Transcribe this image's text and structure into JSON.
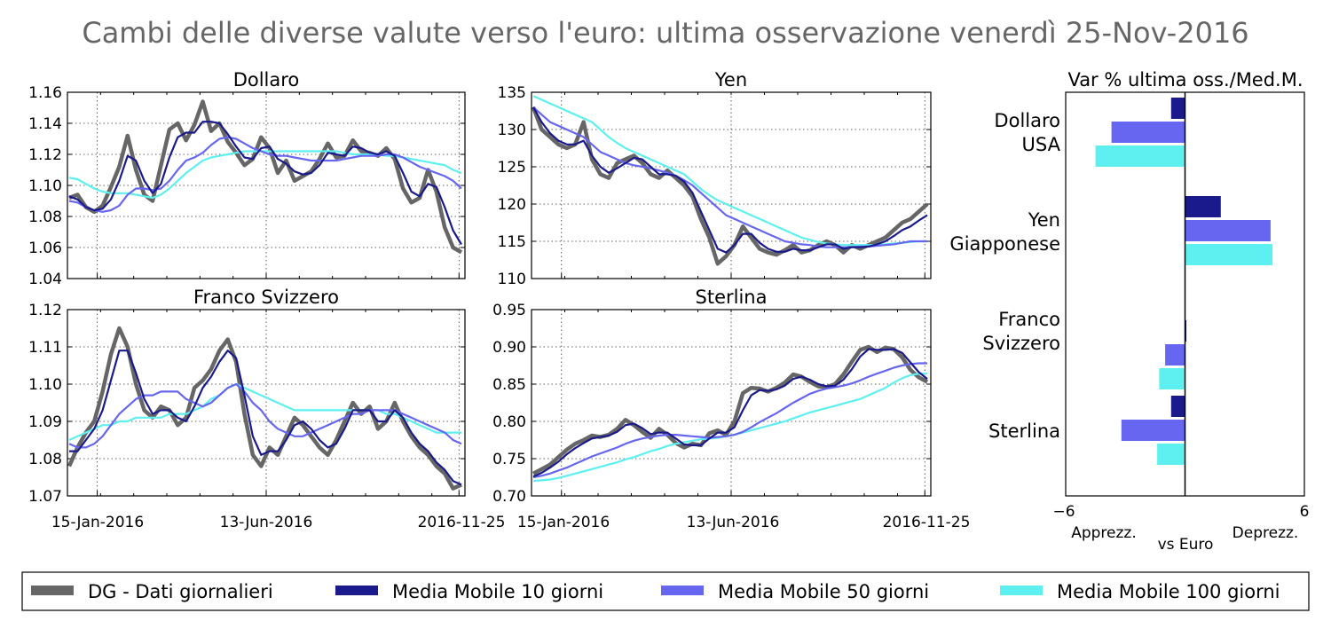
{
  "title": "Cambi delle diverse valute verso l'euro: ultima osservazione venerdì 25-Nov-2016",
  "colors": {
    "daily": "#666666",
    "ma10": "#1a1a8c",
    "ma50": "#6666f0",
    "ma100": "#5ef0f0",
    "apprezz": "#0e9a0e",
    "deprezz": "#a01010"
  },
  "legend": [
    {
      "key": "daily",
      "label": "DG - Dati giornalieri"
    },
    {
      "key": "ma10",
      "label": "Media Mobile 10 giorni"
    },
    {
      "key": "ma50",
      "label": "Media Mobile 50 giorni"
    },
    {
      "key": "ma100",
      "label": "Media Mobile 100 giorni"
    }
  ],
  "chart_data": [
    {
      "type": "line",
      "title": "Dollaro",
      "x_ticks": [
        "15-Jan-2016",
        "13-Jun-2016",
        "2016-11-25"
      ],
      "ylim": [
        1.04,
        1.16
      ],
      "yticks": [
        "1.04",
        "1.06",
        "1.08",
        "1.10",
        "1.12",
        "1.14",
        "1.16"
      ],
      "series": [
        {
          "name": "DG - Dati giornalieri",
          "key": "daily",
          "values": [
            1.092,
            1.094,
            1.086,
            1.083,
            1.087,
            1.099,
            1.112,
            1.132,
            1.11,
            1.094,
            1.09,
            1.113,
            1.136,
            1.14,
            1.129,
            1.139,
            1.154,
            1.135,
            1.14,
            1.128,
            1.121,
            1.113,
            1.117,
            1.131,
            1.124,
            1.108,
            1.116,
            1.103,
            1.106,
            1.109,
            1.117,
            1.127,
            1.118,
            1.119,
            1.129,
            1.122,
            1.121,
            1.119,
            1.124,
            1.117,
            1.098,
            1.089,
            1.092,
            1.11,
            1.096,
            1.073,
            1.06,
            1.057
          ]
        },
        {
          "name": "Media Mobile 10 giorni",
          "key": "ma10",
          "values": [
            1.093,
            1.091,
            1.086,
            1.084,
            1.085,
            1.091,
            1.103,
            1.119,
            1.116,
            1.103,
            1.095,
            1.101,
            1.118,
            1.131,
            1.134,
            1.134,
            1.141,
            1.141,
            1.14,
            1.133,
            1.125,
            1.118,
            1.117,
            1.124,
            1.125,
            1.117,
            1.114,
            1.109,
            1.107,
            1.108,
            1.113,
            1.121,
            1.12,
            1.119,
            1.125,
            1.124,
            1.121,
            1.12,
            1.122,
            1.119,
            1.108,
            1.096,
            1.093,
            1.101,
            1.099,
            1.086,
            1.071,
            1.062
          ]
        },
        {
          "name": "Media Mobile 50 giorni",
          "key": "ma50",
          "values": [
            1.09,
            1.089,
            1.086,
            1.084,
            1.083,
            1.084,
            1.087,
            1.094,
            1.098,
            1.098,
            1.097,
            1.098,
            1.103,
            1.11,
            1.116,
            1.118,
            1.121,
            1.126,
            1.13,
            1.131,
            1.13,
            1.127,
            1.124,
            1.122,
            1.12,
            1.119,
            1.119,
            1.118,
            1.117,
            1.116,
            1.116,
            1.116,
            1.116,
            1.117,
            1.118,
            1.119,
            1.119,
            1.119,
            1.12,
            1.12,
            1.118,
            1.115,
            1.112,
            1.11,
            1.108,
            1.106,
            1.103,
            1.098
          ]
        },
        {
          "name": "Media Mobile 100 giorni",
          "key": "ma100",
          "values": [
            1.105,
            1.104,
            1.101,
            1.098,
            1.096,
            1.095,
            1.095,
            1.095,
            1.094,
            1.093,
            1.092,
            1.094,
            1.098,
            1.103,
            1.108,
            1.112,
            1.116,
            1.118,
            1.119,
            1.12,
            1.121,
            1.122,
            1.122,
            1.122,
            1.122,
            1.122,
            1.122,
            1.122,
            1.122,
            1.122,
            1.122,
            1.122,
            1.122,
            1.121,
            1.12,
            1.12,
            1.12,
            1.12,
            1.119,
            1.119,
            1.118,
            1.117,
            1.116,
            1.115,
            1.114,
            1.113,
            1.11,
            1.108
          ]
        }
      ]
    },
    {
      "type": "line",
      "title": "Yen",
      "x_ticks": [
        "15-Jan-2016",
        "13-Jun-2016",
        "2016-11-25"
      ],
      "ylim": [
        110,
        135
      ],
      "yticks": [
        "110",
        "115",
        "120",
        "125",
        "130",
        "135"
      ],
      "series": [
        {
          "name": "DG - Dati giornalieri",
          "key": "daily",
          "values": [
            133.0,
            130.0,
            129.0,
            128.0,
            127.5,
            128.0,
            131.0,
            126.0,
            124.0,
            123.5,
            125.5,
            126.0,
            126.5,
            125.5,
            124.0,
            123.5,
            124.5,
            123.5,
            122.5,
            121.0,
            118.0,
            115.5,
            112.0,
            113.0,
            114.5,
            117.0,
            115.5,
            114.0,
            113.5,
            113.2,
            113.8,
            114.5,
            113.5,
            113.8,
            114.5,
            115.0,
            114.5,
            113.5,
            114.5,
            114.0,
            114.5,
            115.0,
            115.5,
            116.5,
            117.5,
            118.0,
            119.0,
            120.0
          ]
        },
        {
          "name": "Media Mobile 10 giorni",
          "key": "ma10",
          "values": [
            133.0,
            131.0,
            129.5,
            128.5,
            128.0,
            128.0,
            128.5,
            126.5,
            125.0,
            124.2,
            124.8,
            125.5,
            126.2,
            126.0,
            125.0,
            124.0,
            124.0,
            123.8,
            123.0,
            121.5,
            119.0,
            116.5,
            114.0,
            113.5,
            114.5,
            116.0,
            116.0,
            114.8,
            114.0,
            113.6,
            113.6,
            114.0,
            113.8,
            113.8,
            114.2,
            114.6,
            114.6,
            114.0,
            114.2,
            114.2,
            114.3,
            114.6,
            115.0,
            115.7,
            116.5,
            117.0,
            117.8,
            118.5
          ]
        },
        {
          "name": "Media Mobile 50 giorni",
          "key": "ma50",
          "values": [
            133.0,
            132.0,
            131.0,
            130.5,
            130.0,
            129.5,
            129.0,
            128.0,
            127.0,
            126.5,
            126.0,
            125.5,
            125.2,
            125.0,
            124.8,
            124.5,
            124.2,
            123.8,
            123.2,
            122.5,
            121.5,
            120.5,
            119.5,
            118.5,
            118.0,
            117.5,
            117.0,
            116.5,
            116.0,
            115.5,
            115.0,
            114.8,
            114.6,
            114.5,
            114.3,
            114.2,
            114.2,
            114.2,
            114.2,
            114.3,
            114.3,
            114.4,
            114.5,
            114.6,
            114.8,
            115.0,
            115.0,
            115.0
          ]
        },
        {
          "name": "Media Mobile 100 giorni",
          "key": "ma100",
          "values": [
            134.5,
            134.0,
            133.5,
            133.0,
            132.5,
            132.0,
            131.5,
            131.0,
            130.0,
            129.0,
            128.2,
            127.5,
            127.0,
            126.5,
            126.0,
            125.5,
            125.0,
            124.5,
            124.0,
            123.0,
            122.0,
            121.2,
            120.5,
            120.0,
            119.5,
            119.0,
            118.5,
            118.0,
            117.5,
            117.0,
            116.5,
            116.0,
            115.5,
            115.2,
            114.9,
            114.7,
            114.6,
            114.5,
            114.5,
            114.5,
            114.5,
            114.5,
            114.6,
            114.7,
            114.8,
            114.9,
            115.0,
            115.0
          ]
        }
      ]
    },
    {
      "type": "line",
      "title": "Franco Svizzero",
      "x_ticks": [
        "15-Jan-2016",
        "13-Jun-2016",
        "2016-11-25"
      ],
      "ylim": [
        1.07,
        1.12
      ],
      "yticks": [
        "1.07",
        "1.08",
        "1.09",
        "1.10",
        "1.11",
        "1.12"
      ],
      "series": [
        {
          "name": "DG - Dati giornalieri",
          "key": "daily",
          "values": [
            1.078,
            1.083,
            1.087,
            1.09,
            1.098,
            1.108,
            1.115,
            1.11,
            1.1,
            1.093,
            1.091,
            1.094,
            1.093,
            1.089,
            1.091,
            1.099,
            1.101,
            1.104,
            1.109,
            1.112,
            1.106,
            1.092,
            1.081,
            1.078,
            1.083,
            1.081,
            1.086,
            1.091,
            1.089,
            1.086,
            1.083,
            1.081,
            1.085,
            1.09,
            1.095,
            1.092,
            1.094,
            1.088,
            1.09,
            1.095,
            1.09,
            1.086,
            1.083,
            1.081,
            1.078,
            1.076,
            1.072,
            1.073
          ]
        },
        {
          "name": "Media Mobile 10 giorni",
          "key": "ma10",
          "values": [
            1.082,
            1.082,
            1.085,
            1.088,
            1.093,
            1.101,
            1.109,
            1.109,
            1.103,
            1.096,
            1.092,
            1.093,
            1.093,
            1.091,
            1.09,
            1.094,
            1.099,
            1.102,
            1.106,
            1.109,
            1.107,
            1.097,
            1.086,
            1.081,
            1.082,
            1.082,
            1.085,
            1.089,
            1.09,
            1.088,
            1.085,
            1.083,
            1.084,
            1.088,
            1.093,
            1.093,
            1.093,
            1.09,
            1.09,
            1.093,
            1.091,
            1.087,
            1.084,
            1.082,
            1.079,
            1.077,
            1.074,
            1.073
          ]
        },
        {
          "name": "Media Mobile 50 giorni",
          "key": "ma50",
          "values": [
            1.084,
            1.083,
            1.083,
            1.084,
            1.086,
            1.089,
            1.092,
            1.094,
            1.096,
            1.097,
            1.097,
            1.098,
            1.098,
            1.098,
            1.096,
            1.095,
            1.094,
            1.095,
            1.097,
            1.099,
            1.1,
            1.098,
            1.095,
            1.093,
            1.09,
            1.088,
            1.087,
            1.086,
            1.086,
            1.087,
            1.088,
            1.089,
            1.09,
            1.091,
            1.092,
            1.092,
            1.093,
            1.093,
            1.093,
            1.093,
            1.092,
            1.091,
            1.09,
            1.089,
            1.088,
            1.087,
            1.085,
            1.084
          ]
        },
        {
          "name": "Media Mobile 100 giorni",
          "key": "ma100",
          "values": [
            1.085,
            1.086,
            1.087,
            1.088,
            1.089,
            1.089,
            1.09,
            1.09,
            1.091,
            1.091,
            1.091,
            1.091,
            1.092,
            1.092,
            1.092,
            1.093,
            1.094,
            1.096,
            1.097,
            1.099,
            1.1,
            1.099,
            1.098,
            1.097,
            1.096,
            1.095,
            1.094,
            1.093,
            1.093,
            1.093,
            1.093,
            1.093,
            1.093,
            1.093,
            1.093,
            1.093,
            1.093,
            1.093,
            1.092,
            1.092,
            1.091,
            1.09,
            1.089,
            1.088,
            1.087,
            1.087,
            1.087,
            1.087
          ]
        }
      ]
    },
    {
      "type": "line",
      "title": "Sterlina",
      "x_ticks": [
        "15-Jan-2016",
        "13-Jun-2016",
        "2016-11-25"
      ],
      "ylim": [
        0.7,
        0.95
      ],
      "yticks": [
        "0.70",
        "0.75",
        "0.80",
        "0.85",
        "0.90",
        "0.95"
      ],
      "series": [
        {
          "name": "DG - Dati giornalieri",
          "key": "daily",
          "values": [
            0.73,
            0.736,
            0.742,
            0.752,
            0.762,
            0.77,
            0.775,
            0.781,
            0.779,
            0.782,
            0.79,
            0.802,
            0.795,
            0.786,
            0.778,
            0.79,
            0.782,
            0.771,
            0.765,
            0.77,
            0.768,
            0.784,
            0.788,
            0.782,
            0.8,
            0.838,
            0.845,
            0.844,
            0.84,
            0.845,
            0.852,
            0.863,
            0.86,
            0.853,
            0.847,
            0.846,
            0.85,
            0.863,
            0.88,
            0.896,
            0.9,
            0.893,
            0.899,
            0.897,
            0.886,
            0.869,
            0.859,
            0.853
          ]
        },
        {
          "name": "Media Mobile 10 giorni",
          "key": "ma10",
          "values": [
            0.726,
            0.731,
            0.738,
            0.746,
            0.756,
            0.764,
            0.771,
            0.777,
            0.779,
            0.781,
            0.786,
            0.795,
            0.797,
            0.791,
            0.783,
            0.785,
            0.785,
            0.777,
            0.769,
            0.768,
            0.768,
            0.777,
            0.785,
            0.785,
            0.792,
            0.815,
            0.835,
            0.842,
            0.841,
            0.843,
            0.848,
            0.857,
            0.86,
            0.856,
            0.85,
            0.847,
            0.848,
            0.856,
            0.87,
            0.887,
            0.897,
            0.896,
            0.896,
            0.897,
            0.892,
            0.879,
            0.866,
            0.857
          ]
        },
        {
          "name": "Media Mobile 50 giorni",
          "key": "ma50",
          "values": [
            0.725,
            0.727,
            0.73,
            0.734,
            0.738,
            0.743,
            0.748,
            0.753,
            0.757,
            0.761,
            0.765,
            0.77,
            0.774,
            0.777,
            0.779,
            0.781,
            0.782,
            0.782,
            0.781,
            0.78,
            0.779,
            0.778,
            0.779,
            0.78,
            0.782,
            0.786,
            0.792,
            0.799,
            0.805,
            0.811,
            0.818,
            0.825,
            0.831,
            0.837,
            0.841,
            0.844,
            0.846,
            0.848,
            0.851,
            0.855,
            0.86,
            0.864,
            0.868,
            0.872,
            0.875,
            0.877,
            0.878,
            0.878
          ]
        },
        {
          "name": "Media Mobile 100 giorni",
          "key": "ma100",
          "values": [
            0.72,
            0.721,
            0.722,
            0.724,
            0.727,
            0.73,
            0.733,
            0.736,
            0.739,
            0.742,
            0.745,
            0.749,
            0.752,
            0.756,
            0.76,
            0.763,
            0.767,
            0.77,
            0.772,
            0.774,
            0.776,
            0.777,
            0.778,
            0.78,
            0.782,
            0.785,
            0.788,
            0.791,
            0.794,
            0.797,
            0.8,
            0.804,
            0.808,
            0.812,
            0.815,
            0.818,
            0.821,
            0.824,
            0.827,
            0.83,
            0.835,
            0.84,
            0.845,
            0.852,
            0.858,
            0.862,
            0.864,
            0.864
          ]
        }
      ]
    },
    {
      "type": "bar",
      "orientation": "horizontal",
      "title": "Var % ultima oss./Med.M.",
      "categories": [
        "Dollaro USA",
        "Yen Giapponese",
        "Franco Svizzero",
        "Sterlina"
      ],
      "xlim": [
        -6,
        6
      ],
      "xticks": [
        "−6",
        "6"
      ],
      "xlabel": "vs Euro",
      "left_note": "Apprezz.",
      "right_note": "Deprezz.",
      "series": [
        {
          "name": "Media Mobile 10 giorni",
          "key": "ma10",
          "values": [
            -0.7,
            1.8,
            0.05,
            -0.7
          ]
        },
        {
          "name": "Media Mobile 50 giorni",
          "key": "ma50",
          "values": [
            -3.7,
            4.3,
            -1.0,
            -3.2
          ]
        },
        {
          "name": "Media Mobile 100 giorni",
          "key": "ma100",
          "values": [
            -4.5,
            4.4,
            -1.3,
            -1.4
          ]
        }
      ]
    }
  ]
}
